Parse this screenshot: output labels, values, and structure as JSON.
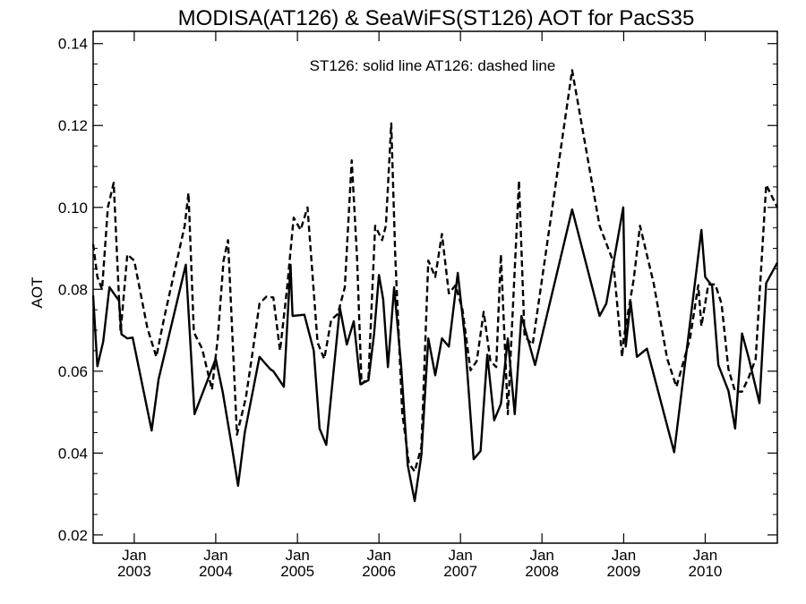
{
  "chart_data": {
    "type": "line",
    "title": "MODISA(AT126) & SeaWiFS(ST126)  AOT for PacS35",
    "annotation": "ST126: solid line   AT126: dashed line",
    "ylabel": "AOT",
    "xlabel": "",
    "ylim": [
      0.018,
      0.143
    ],
    "xlim": [
      "2002-07-01",
      "2010-11-20"
    ],
    "yticks": [
      0.02,
      0.04,
      0.06,
      0.08,
      0.1,
      0.12,
      0.14
    ],
    "ytick_labels": [
      "0.02",
      "0.04",
      "0.06",
      "0.08",
      "0.10",
      "0.12",
      "0.14"
    ],
    "xticks": [
      {
        "date": "2003-01-01",
        "month": "Jan",
        "year": "2003"
      },
      {
        "date": "2004-01-01",
        "month": "Jan",
        "year": "2004"
      },
      {
        "date": "2005-01-01",
        "month": "Jan",
        "year": "2005"
      },
      {
        "date": "2006-01-01",
        "month": "Jan",
        "year": "2006"
      },
      {
        "date": "2007-01-01",
        "month": "Jan",
        "year": "2007"
      },
      {
        "date": "2008-01-01",
        "month": "Jan",
        "year": "2008"
      },
      {
        "date": "2009-01-01",
        "month": "Jan",
        "year": "2009"
      },
      {
        "date": "2010-01-01",
        "month": "Jan",
        "year": "2010"
      }
    ],
    "series": [
      {
        "name": "ST126",
        "style": "solid",
        "color": "#000000",
        "points": [
          [
            "2002-07-01",
            0.0785
          ],
          [
            "2002-07-20",
            0.0612
          ],
          [
            "2002-08-15",
            0.0672
          ],
          [
            "2002-09-12",
            0.0805
          ],
          [
            "2002-10-25",
            0.0772
          ],
          [
            "2002-11-05",
            0.069
          ],
          [
            "2002-12-01",
            0.068
          ],
          [
            "2002-12-25",
            0.0682
          ],
          [
            "2003-03-20",
            0.0455
          ],
          [
            "2003-04-20",
            0.058
          ],
          [
            "2003-08-20",
            0.086
          ],
          [
            "2003-09-28",
            0.0495
          ],
          [
            "2004-01-01",
            0.063
          ],
          [
            "2004-02-01",
            0.055
          ],
          [
            "2004-03-15",
            0.041
          ],
          [
            "2004-04-10",
            0.032
          ],
          [
            "2004-05-10",
            0.045
          ],
          [
            "2004-07-15",
            0.0635
          ],
          [
            "2004-09-01",
            0.0605
          ],
          [
            "2004-09-15",
            0.06
          ],
          [
            "2004-11-01",
            0.0562
          ],
          [
            "2004-12-01",
            0.086
          ],
          [
            "2004-12-10",
            0.0735
          ],
          [
            "2005-02-01",
            0.0738
          ],
          [
            "2005-03-15",
            0.065
          ],
          [
            "2005-04-10",
            0.046
          ],
          [
            "2005-05-10",
            0.042
          ],
          [
            "2005-07-10",
            0.0755
          ],
          [
            "2005-08-10",
            0.0665
          ],
          [
            "2005-09-10",
            0.0722
          ],
          [
            "2005-10-10",
            0.0568
          ],
          [
            "2005-11-15",
            0.0578
          ],
          [
            "2005-12-10",
            0.069
          ],
          [
            "2006-01-01",
            0.0835
          ],
          [
            "2006-01-20",
            0.0775
          ],
          [
            "2006-02-10",
            0.061
          ],
          [
            "2006-03-10",
            0.0805
          ],
          [
            "2006-04-10",
            0.0615
          ],
          [
            "2006-05-10",
            0.037
          ],
          [
            "2006-06-10",
            0.0283
          ],
          [
            "2006-07-10",
            0.0395
          ],
          [
            "2006-08-10",
            0.068
          ],
          [
            "2006-09-10",
            0.059
          ],
          [
            "2006-10-10",
            0.068
          ],
          [
            "2006-11-10",
            0.066
          ],
          [
            "2006-12-20",
            0.084
          ],
          [
            "2007-01-20",
            0.0685
          ],
          [
            "2007-03-01",
            0.0385
          ],
          [
            "2007-04-01",
            0.0405
          ],
          [
            "2007-05-01",
            0.064
          ],
          [
            "2007-06-01",
            0.048
          ],
          [
            "2007-07-01",
            0.052
          ],
          [
            "2007-08-01",
            0.068
          ],
          [
            "2007-09-01",
            0.0495
          ],
          [
            "2007-10-01",
            0.0735
          ],
          [
            "2007-12-01",
            0.0615
          ],
          [
            "2008-05-15",
            0.0995
          ],
          [
            "2008-09-15",
            0.0735
          ],
          [
            "2008-10-15",
            0.0765
          ],
          [
            "2008-12-30",
            0.1
          ],
          [
            "2009-01-10",
            0.066
          ],
          [
            "2009-02-01",
            0.077
          ],
          [
            "2009-03-01",
            0.0635
          ],
          [
            "2009-04-15",
            0.0655
          ],
          [
            "2009-08-15",
            0.0402
          ],
          [
            "2009-12-15",
            0.0945
          ],
          [
            "2010-01-01",
            0.083
          ],
          [
            "2010-02-01",
            0.0808
          ],
          [
            "2010-03-01",
            0.0615
          ],
          [
            "2010-04-15",
            0.0552
          ],
          [
            "2010-05-15",
            0.046
          ],
          [
            "2010-06-15",
            0.0692
          ],
          [
            "2010-07-15",
            0.0632
          ],
          [
            "2010-09-01",
            0.0522
          ],
          [
            "2010-10-01",
            0.0815
          ],
          [
            "2010-11-20",
            0.0865
          ]
        ]
      },
      {
        "name": "AT126",
        "style": "dashed",
        "color": "#000000",
        "points": [
          [
            "2002-07-01",
            0.091
          ],
          [
            "2002-07-20",
            0.083
          ],
          [
            "2002-08-10",
            0.08
          ],
          [
            "2002-09-05",
            0.1
          ],
          [
            "2002-10-01",
            0.106
          ],
          [
            "2002-11-01",
            0.0695
          ],
          [
            "2002-12-01",
            0.0885
          ],
          [
            "2003-01-01",
            0.087
          ],
          [
            "2003-03-01",
            0.0705
          ],
          [
            "2003-04-10",
            0.0635
          ],
          [
            "2003-05-15",
            0.073
          ],
          [
            "2003-08-15",
            0.0955
          ],
          [
            "2003-09-01",
            0.1035
          ],
          [
            "2003-09-25",
            0.0695
          ],
          [
            "2003-11-01",
            0.0655
          ],
          [
            "2003-12-15",
            0.0555
          ],
          [
            "2004-01-10",
            0.068
          ],
          [
            "2004-02-05",
            0.087
          ],
          [
            "2004-02-25",
            0.092
          ],
          [
            "2004-04-05",
            0.0445
          ],
          [
            "2004-05-15",
            0.0535
          ],
          [
            "2004-06-15",
            0.065
          ],
          [
            "2004-07-15",
            0.0765
          ],
          [
            "2004-08-15",
            0.0782
          ],
          [
            "2004-09-15",
            0.078
          ],
          [
            "2004-10-15",
            0.065
          ],
          [
            "2004-11-15",
            0.08
          ],
          [
            "2004-12-15",
            0.0975
          ],
          [
            "2005-01-15",
            0.0945
          ],
          [
            "2005-02-15",
            0.1
          ],
          [
            "2005-04-01",
            0.067
          ],
          [
            "2005-05-01",
            0.063
          ],
          [
            "2005-06-01",
            0.0725
          ],
          [
            "2005-07-01",
            0.074
          ],
          [
            "2005-08-01",
            0.0805
          ],
          [
            "2005-09-01",
            0.1115
          ],
          [
            "2005-09-25",
            0.0875
          ],
          [
            "2005-10-15",
            0.0568
          ],
          [
            "2005-11-15",
            0.0585
          ],
          [
            "2005-12-15",
            0.0955
          ],
          [
            "2006-01-15",
            0.092
          ],
          [
            "2006-02-01",
            0.0955
          ],
          [
            "2006-02-25",
            0.1205
          ],
          [
            "2006-03-15",
            0.088
          ],
          [
            "2006-04-15",
            0.05
          ],
          [
            "2006-05-15",
            0.0375
          ],
          [
            "2006-06-10",
            0.0355
          ],
          [
            "2006-07-10",
            0.0415
          ],
          [
            "2006-08-10",
            0.087
          ],
          [
            "2006-09-10",
            0.083
          ],
          [
            "2006-10-10",
            0.0935
          ],
          [
            "2006-11-10",
            0.079
          ],
          [
            "2006-12-10",
            0.081
          ],
          [
            "2007-01-10",
            0.075
          ],
          [
            "2007-02-15",
            0.0602
          ],
          [
            "2007-03-15",
            0.0625
          ],
          [
            "2007-04-15",
            0.0745
          ],
          [
            "2007-05-15",
            0.0625
          ],
          [
            "2007-06-10",
            0.061
          ],
          [
            "2007-07-01",
            0.0885
          ],
          [
            "2007-08-01",
            0.0495
          ],
          [
            "2007-09-20",
            0.1065
          ],
          [
            "2007-10-15",
            0.0685
          ],
          [
            "2007-11-20",
            0.0665
          ],
          [
            "2008-05-15",
            0.1335
          ],
          [
            "2008-09-15",
            0.0955
          ],
          [
            "2008-11-15",
            0.0868
          ],
          [
            "2008-12-25",
            0.0635
          ],
          [
            "2009-01-01",
            0.068
          ],
          [
            "2009-02-15",
            0.0825
          ],
          [
            "2009-03-15",
            0.0955
          ],
          [
            "2009-05-15",
            0.0815
          ],
          [
            "2009-07-15",
            0.063
          ],
          [
            "2009-08-25",
            0.0562
          ],
          [
            "2009-10-25",
            0.068
          ],
          [
            "2009-12-01",
            0.081
          ],
          [
            "2009-12-15",
            0.071
          ],
          [
            "2010-01-15",
            0.0812
          ],
          [
            "2010-02-15",
            0.0812
          ],
          [
            "2010-03-15",
            0.0765
          ],
          [
            "2010-04-15",
            0.0605
          ],
          [
            "2010-05-15",
            0.055
          ],
          [
            "2010-06-15",
            0.055
          ],
          [
            "2010-07-15",
            0.0585
          ],
          [
            "2010-08-15",
            0.063
          ],
          [
            "2010-10-01",
            0.1055
          ],
          [
            "2010-11-20",
            0.1
          ]
        ]
      }
    ]
  }
}
